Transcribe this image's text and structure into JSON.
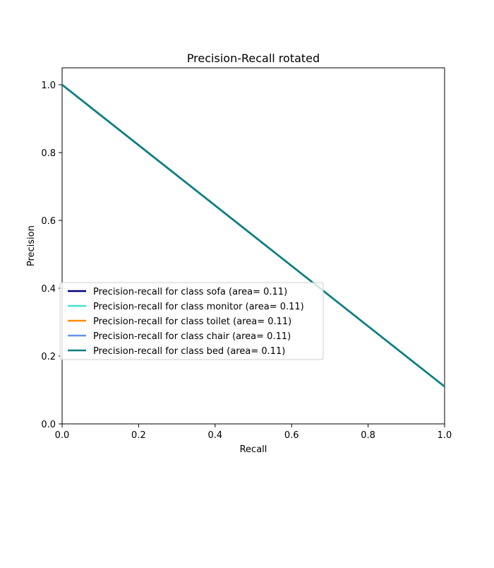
{
  "chart_data": {
    "type": "line",
    "title": "Precision-Recall rotated",
    "xlabel": "Recall",
    "ylabel": "Precision",
    "xlim": [
      0.0,
      1.0
    ],
    "ylim": [
      0.0,
      1.05
    ],
    "xticks": [
      0.0,
      0.2,
      0.4,
      0.6,
      0.8,
      1.0
    ],
    "yticks": [
      0.0,
      0.2,
      0.4,
      0.6,
      0.8,
      1.0
    ],
    "xtick_labels": [
      "0.0",
      "0.2",
      "0.4",
      "0.6",
      "0.8",
      "1.0"
    ],
    "ytick_labels": [
      "0.0",
      "0.2",
      "0.4",
      "0.6",
      "0.8",
      "1.0"
    ],
    "grid": false,
    "legend_position": "center-left",
    "series": [
      {
        "name": "Precision-recall for class sofa (area= 0.11)",
        "color": "#000080",
        "x": [
          0.0,
          1.0
        ],
        "y": [
          1.0,
          0.11
        ]
      },
      {
        "name": "Precision-recall for class monitor (area= 0.11)",
        "color": "#40e0d0",
        "x": [
          0.0,
          1.0
        ],
        "y": [
          1.0,
          0.11
        ]
      },
      {
        "name": "Precision-recall for class toilet (area= 0.11)",
        "color": "#ff8c00",
        "x": [
          0.0,
          1.0
        ],
        "y": [
          1.0,
          0.11
        ]
      },
      {
        "name": "Precision-recall for class chair (area= 0.11)",
        "color": "#6495ed",
        "x": [
          0.0,
          1.0
        ],
        "y": [
          1.0,
          0.11
        ]
      },
      {
        "name": "Precision-recall for class bed (area= 0.11)",
        "color": "#008080",
        "x": [
          0.0,
          1.0
        ],
        "y": [
          1.0,
          0.11
        ]
      }
    ]
  }
}
